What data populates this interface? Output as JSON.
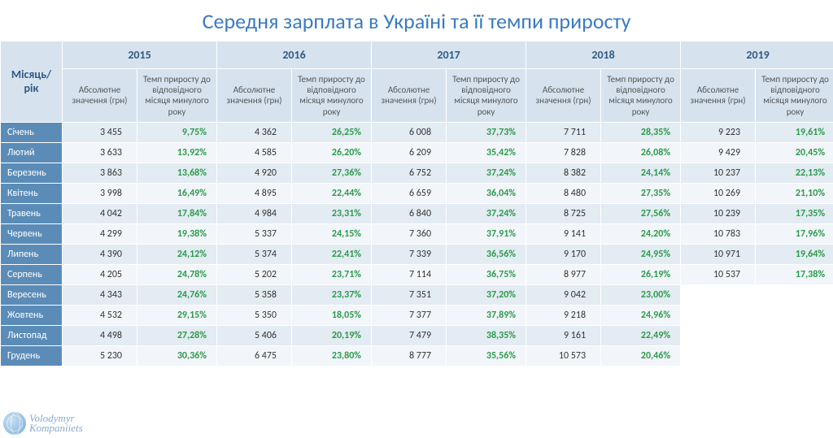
{
  "title": "Середня зарплата в Україні та її темпи приросту",
  "row_header": "Місяць/рік",
  "years": [
    "2015",
    "2016",
    "2017",
    "2018",
    "2019"
  ],
  "subheaders": {
    "abs": "Абсолютне значення (грн)",
    "rate": "Темп приросту до відповідного місяця минулого року"
  },
  "months": [
    "Січень",
    "Лютий",
    "Березень",
    "Квітень",
    "Травень",
    "Червень",
    "Липень",
    "Серпень",
    "Вересень",
    "Жовтень",
    "Листопад",
    "Грудень"
  ],
  "data": {
    "2015": {
      "abs": [
        "3 455",
        "3 633",
        "3 863",
        "3 998",
        "4 042",
        "4 299",
        "4 390",
        "4 205",
        "4 343",
        "4 532",
        "4 498",
        "5 230"
      ],
      "rate": [
        "9,75%",
        "13,92%",
        "13,68%",
        "16,49%",
        "17,84%",
        "19,38%",
        "24,12%",
        "24,78%",
        "24,76%",
        "29,15%",
        "27,28%",
        "30,36%"
      ]
    },
    "2016": {
      "abs": [
        "4 362",
        "4 585",
        "4 920",
        "4 895",
        "4 984",
        "5 337",
        "5 374",
        "5 202",
        "5 358",
        "5 350",
        "5 406",
        "6 475"
      ],
      "rate": [
        "26,25%",
        "26,20%",
        "27,36%",
        "22,44%",
        "23,31%",
        "24,15%",
        "22,41%",
        "23,71%",
        "23,37%",
        "18,05%",
        "20,19%",
        "23,80%"
      ]
    },
    "2017": {
      "abs": [
        "6 008",
        "6 209",
        "6 752",
        "6 659",
        "6 840",
        "7 360",
        "7 339",
        "7 114",
        "7 351",
        "7 377",
        "7 479",
        "8 777"
      ],
      "rate": [
        "37,73%",
        "35,42%",
        "37,24%",
        "36,04%",
        "37,24%",
        "37,91%",
        "36,56%",
        "36,75%",
        "37,20%",
        "37,89%",
        "38,35%",
        "35,56%"
      ]
    },
    "2018": {
      "abs": [
        "7 711",
        "7 828",
        "8 382",
        "8 480",
        "8 725",
        "9 141",
        "9 170",
        "8 977",
        "9 042",
        "9 218",
        "9 161",
        "10 573"
      ],
      "rate": [
        "28,35%",
        "26,08%",
        "24,14%",
        "27,35%",
        "27,56%",
        "24,20%",
        "24,95%",
        "26,19%",
        "23,00%",
        "24,96%",
        "22,49%",
        "20,46%"
      ]
    },
    "2019": {
      "abs": [
        "9 223",
        "9 429",
        "10 237",
        "10 269",
        "10 239",
        "10 783",
        "10 971",
        "10 537",
        "",
        "",
        "",
        ""
      ],
      "rate": [
        "19,61%",
        "20,45%",
        "22,13%",
        "21,10%",
        "17,35%",
        "17,96%",
        "19,64%",
        "17,38%",
        "",
        "",
        "",
        ""
      ]
    }
  },
  "styling": {
    "title_color": "#3b7bbf",
    "title_fontsize": 26,
    "header_bg": "#d6e3ef",
    "header_text": "#315a85",
    "month_cell_bg": "#5b8cb8",
    "month_cell_text": "#ffffff",
    "row_odd_bg": "#e3ebf3",
    "row_even_bg": "#f2f6fa",
    "abs_text_color": "#333333",
    "rate_text_color": "#2b9b4a",
    "rate_font_weight": "bold",
    "border_color": "#ffffff",
    "body_fontsize": 12,
    "subheader_fontsize": 11
  },
  "logo": {
    "line1": "Volodymyr",
    "line2": "Kompaniiets"
  }
}
